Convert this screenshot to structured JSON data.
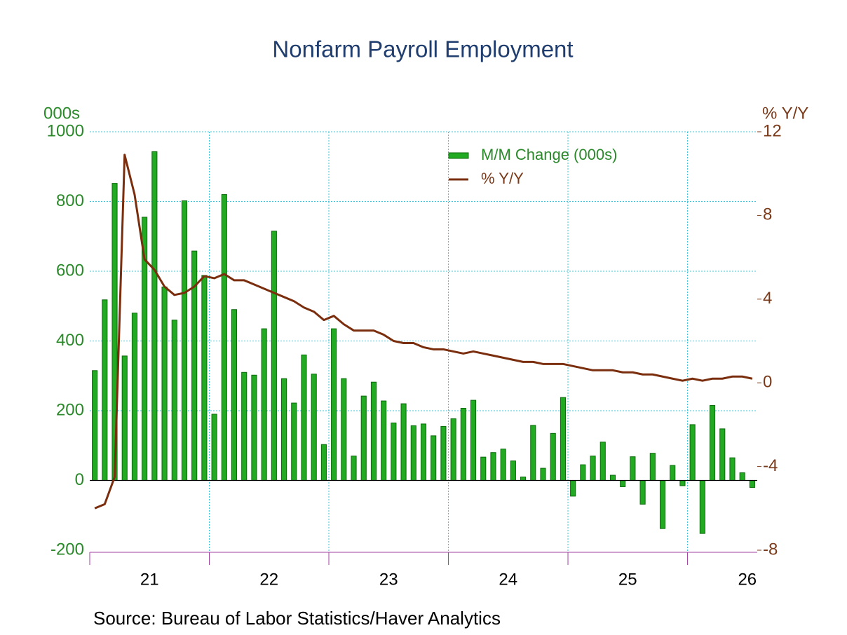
{
  "chart_data": {
    "type": "bar_line",
    "title": "Nonfarm Payroll Employment",
    "ylabel": "000s",
    "y2label": "% Y/Y",
    "source": "Source:  Bureau of Labor Statistics/Haver Analytics",
    "categories": [
      null,
      null,
      null,
      null,
      null,
      null,
      null,
      null,
      null,
      null,
      null,
      null,
      null,
      null,
      null,
      null,
      null,
      null,
      null,
      null,
      null,
      null,
      null,
      null,
      null,
      null,
      null,
      null,
      null,
      null,
      null,
      null,
      null,
      null,
      null,
      null,
      null,
      null,
      null,
      null,
      null,
      null,
      null,
      null,
      null,
      null,
      null,
      null,
      null,
      null,
      null,
      null,
      null,
      null,
      null,
      null,
      null,
      null,
      null,
      null,
      null,
      null,
      null,
      null,
      null,
      null,
      null
    ],
    "xlim": [
      0,
      67
    ],
    "xticks": [
      {
        "value": 6,
        "label": "21"
      },
      {
        "value": 18,
        "label": "22"
      },
      {
        "value": 30,
        "label": "23"
      },
      {
        "value": 42,
        "label": "24"
      },
      {
        "value": 54,
        "label": "25"
      },
      {
        "value": 66,
        "label": "26"
      }
    ],
    "xgrid": [
      0,
      12,
      24,
      36,
      48,
      60
    ],
    "ylim": [
      -200,
      1000
    ],
    "yticks": [
      -200,
      0,
      200,
      400,
      600,
      800,
      1000
    ],
    "y2lim": [
      -8,
      12
    ],
    "y2ticks": [
      -8,
      -4,
      0,
      4,
      8,
      12
    ],
    "grid": true,
    "legend": "upper-center",
    "series": [
      {
        "name": "M/M Change (000s)",
        "type": "bar",
        "color": "#22aa22",
        "values": [
          315,
          518,
          852,
          357,
          480,
          755,
          943,
          555,
          460,
          802,
          658,
          588,
          190,
          820,
          490,
          310,
          302,
          435,
          715,
          292,
          222,
          360,
          305,
          103,
          435,
          292,
          70,
          242,
          282,
          228,
          165,
          220,
          157,
          162,
          128,
          155,
          177,
          207,
          230,
          67,
          80,
          90,
          56,
          10,
          158,
          35,
          135,
          238,
          -45,
          45,
          70,
          110,
          15,
          -18,
          68,
          -68,
          78,
          -138,
          43,
          -15,
          160,
          -152,
          215,
          148,
          65,
          22,
          -20
        ]
      },
      {
        "name": "% Y/Y",
        "type": "line",
        "axis": "y2",
        "color": "#7a2e0e",
        "values": [
          -6.0,
          -5.8,
          -4.5,
          10.9,
          9.0,
          5.9,
          5.4,
          4.6,
          4.2,
          4.3,
          4.6,
          5.1,
          5.0,
          5.2,
          4.9,
          4.9,
          4.7,
          4.5,
          4.3,
          4.1,
          3.9,
          3.6,
          3.4,
          3.0,
          3.2,
          2.8,
          2.5,
          2.5,
          2.5,
          2.3,
          2.0,
          1.9,
          1.9,
          1.7,
          1.6,
          1.6,
          1.5,
          1.4,
          1.5,
          1.4,
          1.3,
          1.2,
          1.1,
          1.0,
          1.0,
          0.9,
          0.9,
          0.9,
          0.8,
          0.7,
          0.6,
          0.6,
          0.6,
          0.5,
          0.5,
          0.4,
          0.4,
          0.3,
          0.2,
          0.1,
          0.2,
          0.1,
          0.2,
          0.2,
          0.3,
          0.3,
          0.2
        ]
      }
    ]
  }
}
